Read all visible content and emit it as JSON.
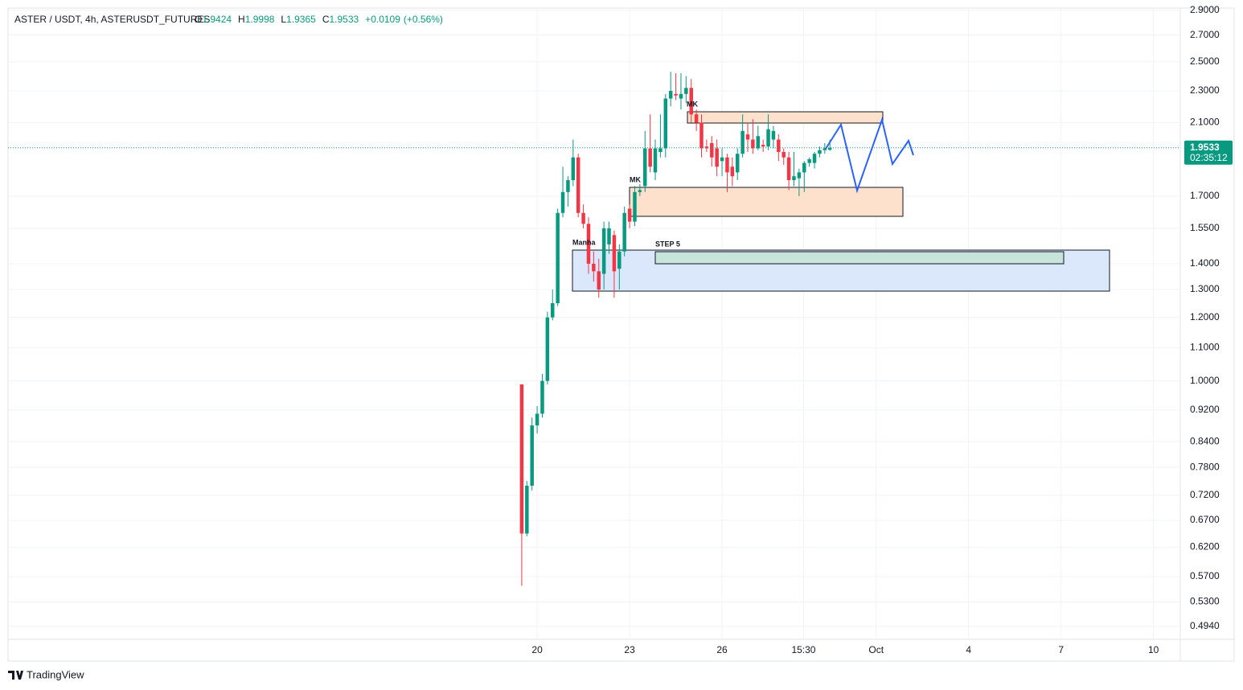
{
  "chart_data": {
    "type": "candlestick",
    "title": "ASTER / USDT, 4h, ASTERUSDT_FUTURES",
    "ohlc_letters": [
      "O",
      "H",
      "L",
      "C"
    ],
    "change": "+0.0109",
    "change_percent": "(+0.56%)",
    "countdown": "02:35:12",
    "watermark": "TradingView",
    "annotations": [
      "MK",
      "MK",
      "Manha",
      "STEP 5"
    ],
    "up_color": "#089981",
    "down_color": "#f23645",
    "log_scale": true,
    "grid": true,
    "x": [
      19.5,
      19.667,
      19.833,
      20,
      20.167,
      20.333,
      20.5,
      20.667,
      20.833,
      21,
      21.167,
      21.333,
      21.5,
      21.667,
      21.833,
      22,
      22.167,
      22.333,
      22.5,
      22.667,
      22.833,
      23,
      23.167,
      23.333,
      23.5,
      23.667,
      23.833,
      24,
      24.167,
      24.333,
      24.5,
      24.667,
      24.833,
      25,
      25.167,
      25.333,
      25.5,
      25.667,
      25.833,
      26,
      26.167,
      26.333,
      26.5,
      26.667,
      26.833,
      27,
      27.167,
      27.333,
      27.5,
      27.667,
      27.833,
      28,
      28.167,
      28.333,
      28.5,
      28.667,
      28.833,
      29,
      29.167,
      29.333,
      29.5
    ],
    "open": [
      0.99,
      0.645,
      0.74,
      0.88,
      0.91,
      1.0,
      1.2,
      1.25,
      1.62,
      1.72,
      1.78,
      1.9,
      1.62,
      1.57,
      1.4,
      1.37,
      1.36,
      1.48,
      1.52,
      1.38,
      1.45,
      1.64,
      1.58,
      1.72,
      1.75,
      1.95,
      1.82,
      1.93,
      1.95,
      2.25,
      2.28,
      2.25,
      2.28,
      2.32,
      2.15,
      2.1,
      1.96,
      1.98,
      1.95,
      1.88,
      1.9,
      1.85,
      1.82,
      1.92,
      2.03,
      2.0,
      1.95,
      1.97,
      1.96,
      2.0,
      2.0,
      1.93,
      1.9,
      1.78,
      1.79,
      1.82,
      1.87,
      1.87,
      1.92,
      1.94,
      1.9424
    ],
    "high": [
      0.99,
      0.75,
      0.9,
      0.93,
      1.02,
      1.22,
      1.3,
      1.64,
      1.85,
      1.8,
      2.0,
      1.92,
      1.66,
      1.6,
      1.45,
      1.42,
      1.58,
      1.58,
      1.54,
      1.48,
      1.65,
      1.66,
      1.75,
      1.76,
      2.05,
      2.15,
      2.0,
      2.15,
      2.28,
      2.43,
      2.42,
      2.42,
      2.4,
      2.38,
      2.18,
      2.15,
      2.0,
      2.02,
      2.0,
      1.95,
      1.92,
      1.9,
      1.95,
      2.15,
      2.1,
      2.12,
      2.08,
      2.0,
      2.15,
      2.08,
      2.03,
      1.95,
      1.93,
      1.93,
      1.84,
      1.88,
      1.9,
      1.93,
      1.96,
      1.98,
      1.9998
    ],
    "low": [
      0.555,
      0.64,
      0.73,
      0.86,
      0.9,
      0.99,
      1.19,
      1.24,
      1.6,
      1.65,
      1.75,
      1.6,
      1.55,
      1.36,
      1.33,
      1.27,
      1.3,
      1.44,
      1.27,
      1.3,
      1.43,
      1.55,
      1.56,
      1.7,
      1.72,
      1.82,
      1.78,
      1.9,
      1.9,
      2.2,
      2.24,
      2.18,
      2.22,
      2.1,
      2.05,
      1.9,
      1.93,
      1.85,
      1.8,
      1.8,
      1.72,
      1.75,
      1.78,
      1.9,
      1.93,
      1.92,
      1.94,
      1.93,
      1.94,
      1.95,
      1.88,
      1.86,
      1.73,
      1.75,
      1.7,
      1.72,
      1.85,
      1.84,
      1.9,
      1.92,
      1.9365
    ],
    "close": [
      0.645,
      0.74,
      0.88,
      0.91,
      1.0,
      1.2,
      1.25,
      1.62,
      1.72,
      1.78,
      1.9,
      1.62,
      1.57,
      1.4,
      1.37,
      1.3,
      1.55,
      1.55,
      1.37,
      1.45,
      1.62,
      1.58,
      1.72,
      1.73,
      1.95,
      1.85,
      1.95,
      1.95,
      2.25,
      2.3,
      2.27,
      2.28,
      2.32,
      2.15,
      2.1,
      1.95,
      1.95,
      1.9,
      1.85,
      1.9,
      1.82,
      1.8,
      1.92,
      2.05,
      2.0,
      1.95,
      2.02,
      1.96,
      2.06,
      2.05,
      1.93,
      1.9,
      1.78,
      1.8,
      1.82,
      1.87,
      1.89,
      1.92,
      1.94,
      1.95,
      1.9533
    ],
    "xlim": [
      2.83,
      40.87
    ],
    "xticks": [
      20,
      23,
      26,
      {
        "value": 28.646,
        "label": "15:30"
      },
      {
        "value": 31,
        "label": "Oct"
      },
      {
        "value": 34,
        "label": "4"
      },
      {
        "value": 37,
        "label": "7"
      },
      {
        "value": 40,
        "label": "10"
      }
    ],
    "ylim": [
      0.476,
      2.918
    ],
    "yticks": [
      {
        "value": 2.9,
        "label": "2.9000"
      },
      {
        "value": 2.7,
        "label": "2.7000"
      },
      {
        "value": 2.5,
        "label": "2.5000"
      },
      {
        "value": 2.3,
        "label": "2.3000"
      },
      {
        "value": 2.1,
        "label": "2.1000"
      },
      {
        "value": 1.7,
        "label": "1.7000"
      },
      {
        "value": 1.55,
        "label": "1.5500"
      },
      {
        "value": 1.4,
        "label": "1.4000"
      },
      {
        "value": 1.3,
        "label": "1.3000"
      },
      {
        "value": 1.2,
        "label": "1.2000"
      },
      {
        "value": 1.1,
        "label": "1.1000"
      },
      {
        "value": 1.0,
        "label": "1.0000"
      },
      {
        "value": 0.92,
        "label": "0.9200"
      },
      {
        "value": 0.84,
        "label": "0.8400"
      },
      {
        "value": 0.78,
        "label": "0.7800"
      },
      {
        "value": 0.72,
        "label": "0.7200"
      },
      {
        "value": 0.67,
        "label": "0.6700"
      },
      {
        "value": 0.62,
        "label": "0.6200"
      },
      {
        "value": 0.57,
        "label": "0.5700"
      },
      {
        "value": 0.53,
        "label": "0.5300"
      },
      {
        "value": 0.494,
        "label": "0.4940"
      }
    ]
  }
}
